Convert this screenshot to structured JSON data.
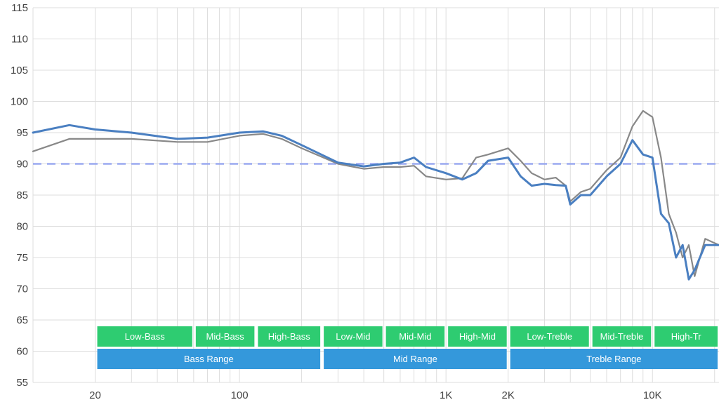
{
  "chart_data": {
    "type": "line",
    "x_scale": "log",
    "xlim": [
      10,
      21000
    ],
    "ylim": [
      55,
      115
    ],
    "grid": true,
    "x_ticks": [
      {
        "value": 20,
        "label": "20"
      },
      {
        "value": 100,
        "label": "100"
      },
      {
        "value": 1000,
        "label": "1K"
      },
      {
        "value": 2000,
        "label": "2K"
      },
      {
        "value": 10000,
        "label": "10K"
      }
    ],
    "y_ticks": [
      55,
      60,
      65,
      70,
      75,
      80,
      85,
      90,
      95,
      100,
      105,
      110,
      115
    ],
    "target_level": 90,
    "series": [
      {
        "color": "#888888",
        "x": [
          10,
          15,
          20,
          30,
          50,
          70,
          100,
          130,
          160,
          200,
          300,
          400,
          500,
          600,
          700,
          800,
          1000,
          1200,
          1400,
          1600,
          2000,
          2300,
          2600,
          3000,
          3400,
          3800,
          4000,
          4500,
          5000,
          6000,
          7000,
          8000,
          9000,
          10000,
          11000,
          12000,
          13000,
          14000,
          15000,
          16000,
          18000,
          21000
        ],
        "y": [
          92,
          94,
          94,
          94,
          93.5,
          93.5,
          94.5,
          94.8,
          94,
          92.5,
          90,
          89.2,
          89.5,
          89.5,
          89.7,
          88,
          87.5,
          87.7,
          91,
          91.5,
          92.5,
          90.5,
          88.5,
          87.5,
          87.8,
          86.5,
          84,
          85.5,
          86,
          89,
          91,
          96,
          98.5,
          97.5,
          91,
          82,
          79,
          75,
          77,
          72,
          78,
          77
        ]
      },
      {
        "color": "#4a7fc1",
        "x": [
          10,
          15,
          20,
          30,
          50,
          70,
          100,
          130,
          160,
          200,
          300,
          400,
          500,
          600,
          700,
          800,
          1000,
          1200,
          1400,
          1600,
          2000,
          2300,
          2600,
          3000,
          3400,
          3800,
          4000,
          4500,
          5000,
          6000,
          7000,
          8000,
          9000,
          10000,
          11000,
          12000,
          13000,
          14000,
          15000,
          16000,
          18000,
          21000
        ],
        "y": [
          95,
          96.2,
          95.5,
          95,
          94,
          94.2,
          95,
          95.2,
          94.5,
          93,
          90.2,
          89.6,
          90,
          90.2,
          91,
          89.5,
          88.5,
          87.5,
          88.5,
          90.5,
          91,
          88,
          86.5,
          86.8,
          86.6,
          86.5,
          83.5,
          85,
          85,
          88,
          90,
          93.8,
          91.5,
          91,
          82,
          80.5,
          75,
          77,
          71.5,
          73,
          77,
          77
        ]
      }
    ],
    "bands": [
      {
        "row": 1,
        "label": "Low-Bass",
        "from": 20,
        "to": 60
      },
      {
        "row": 1,
        "label": "Mid-Bass",
        "from": 60,
        "to": 120
      },
      {
        "row": 1,
        "label": "High-Bass",
        "from": 120,
        "to": 250
      },
      {
        "row": 1,
        "label": "Low-Mid",
        "from": 250,
        "to": 500
      },
      {
        "row": 1,
        "label": "Mid-Mid",
        "from": 500,
        "to": 1000
      },
      {
        "row": 1,
        "label": "High-Mid",
        "from": 1000,
        "to": 2000
      },
      {
        "row": 1,
        "label": "Low-Treble",
        "from": 2000,
        "to": 5000
      },
      {
        "row": 1,
        "label": "Mid-Treble",
        "from": 5000,
        "to": 10000
      },
      {
        "row": 1,
        "label": "High-Tr",
        "from": 10000,
        "to": 21000
      },
      {
        "row": 2,
        "label": "Bass Range",
        "from": 20,
        "to": 250
      },
      {
        "row": 2,
        "label": "Mid Range",
        "from": 250,
        "to": 2000
      },
      {
        "row": 2,
        "label": "Treble Range",
        "from": 2000,
        "to": 21000
      }
    ],
    "colors": {
      "band_row1": "#2ecc71",
      "band_row2": "#3498db",
      "target": "#9aa8f0",
      "grid": "#dddddd"
    }
  }
}
